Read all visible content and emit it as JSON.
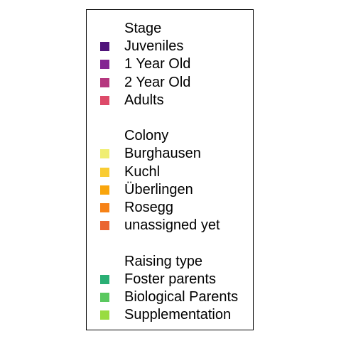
{
  "chart_data": {
    "type": "legend",
    "groups": [
      {
        "title": "Stage",
        "items": [
          {
            "label": "Juveniles",
            "color": "#4f137a"
          },
          {
            "label": "1 Year Old",
            "color": "#842592"
          },
          {
            "label": "2 Year Old",
            "color": "#b5377f"
          },
          {
            "label": "Adults",
            "color": "#dd4a69"
          }
        ]
      },
      {
        "title": "Colony",
        "items": [
          {
            "label": "Burghausen",
            "color": "#f0ee72"
          },
          {
            "label": "Kuchl",
            "color": "#f9cc33"
          },
          {
            "label": "Überlingen",
            "color": "#f9a50c"
          },
          {
            "label": "Rosegg",
            "color": "#f68217"
          },
          {
            "label": "unassigned yet",
            "color": "#ea6532"
          }
        ]
      },
      {
        "title": "Raising type",
        "items": [
          {
            "label": "Foster parents",
            "color": "#2aaf74"
          },
          {
            "label": "Biological Parents",
            "color": "#5ac85f"
          },
          {
            "label": "Supplementation",
            "color": "#99dc40"
          }
        ]
      }
    ]
  }
}
